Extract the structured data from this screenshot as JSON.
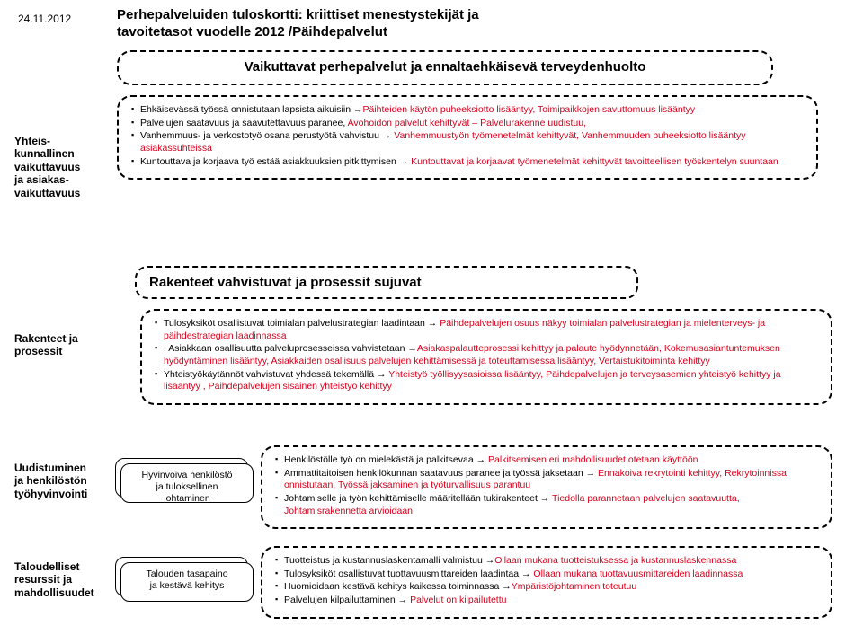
{
  "date": "24.11.2012",
  "title_line1": "Perhepalveluiden tuloskortti: kriittiset menestystekijät  ja",
  "title_line2": "tavoitetasot vuodelle  2012  /Päihdepalvelut",
  "subtitle": "Vaikuttavat perhepalvelut ja ennaltaehkäisevä terveydenhuolto",
  "section_header": "Rakenteet vahvistuvat ja prosessit sujuvat",
  "labels": {
    "l1a": "Yhteis-",
    "l1b": "kunnallinen",
    "l1c": "vaikuttavuus",
    "l1d": "ja asiakas-",
    "l1e": "vaikuttavuus",
    "l2a": "Rakenteet ja",
    "l2b": "prosessit",
    "l3a": "Uudistuminen",
    "l3b": "ja henkilöstön",
    "l3c": "työhyvinvointi",
    "l4a": "Taloudelliset",
    "l4b": "resurssit ja",
    "l4c": "mahdollisuudet"
  },
  "pill1_line1": "Hyvinvoiva henkilöstö",
  "pill1_line2": "ja tuloksellinen",
  "pill1_line3": "johtaminen",
  "pill2_line1": "Talouden tasapaino",
  "pill2_line2": "ja kestävä kehitys",
  "panelA": [
    {
      "blk": "Ehkäisevässä työssä onnistutaan lapsista aikuisiin →",
      "red": "Päihteiden käytön puheeksiotto lisääntyy, Toimipaikkojen savuttomuus lisääntyy"
    },
    {
      "blk": "Palvelujen saatavuus ja saavutettavuus paranee, ",
      "red": "Avohoidon palvelut kehittyvät – Palvelurakenne uudistuu,"
    },
    {
      "blk": "Vanhemmuus- ja verkostotyö osana perustyötä vahvistuu → ",
      "red": "Vanhemmuustyön työmenetelmät kehittyvät, Vanhemmuuden puheeksiotto lisääntyy asiakassuhteissa"
    },
    {
      "blk": "Kuntouttava ja korjaava työ estää asiakkuuksien pitkittymisen → ",
      "red": "Kuntouttavat ja korjaavat työmenetelmät kehittyvät tavoitteellisen työskentelyn suuntaan"
    }
  ],
  "panelB": [
    {
      "blk": "Tulosyksiköt osallistuvat toimialan palvelustrategian laadintaan → ",
      "red": "Päihdepalvelujen osuus näkyy toimialan palvelustrategian ja mielenterveys- ja päihdestrategian laadinnassa"
    },
    {
      "blk": ", Asiakkaan osallisuutta palveluprosesseissa vahvistetaan →",
      "red": "Asiakaspalautteprosessi kehittyy ja palaute hyödynnetään, Kokemusasiantuntemuksen hyödyntäminen lisääntyy, Asiakkaiden osallisuus palvelujen kehittämisessä ja toteuttamisessa lisääntyy,  Vertaistukitoiminta kehittyy"
    },
    {
      "blk": "Yhteistyökäytännöt vahvistuvat yhdessä tekemällä → ",
      "red": "Yhteistyö työllisyysasioissa lisääntyy, Päihdepalvelujen ja terveysasemien yhteistyö kehittyy ja lisääntyy , Päihdepalvelujen sisäinen yhteistyö kehittyy"
    }
  ],
  "panelC": [
    {
      "blk": "Henkilöstölle työ on mielekästä ja palkitsevaa → ",
      "red": "Palkitsemisen eri mahdollisuudet otetaan käyttöön"
    },
    {
      "blk": "Ammattitaitoisen henkilökunnan saatavuus paranee ja työssä jaksetaan → ",
      "red": "Ennakoiva rekrytointi kehittyy, Rekrytoinnissa onnistutaan, Työssä jaksaminen ja työturvallisuus parantuu"
    },
    {
      "blk": "Johtamiselle ja työn kehittämiselle määritellään tukirakenteet → ",
      "red": "Tiedolla parannetaan palvelujen saatavuutta, Johtamisrakennetta arvioidaan"
    }
  ],
  "panelD": [
    {
      "blk": "Tuotteistus ja kustannuslaskentamalli valmistuu →",
      "red": "Ollaan mukana tuotteistuksessa ja kustannuslaskennassa"
    },
    {
      "blk": "Tulosyksiköt osallistuvat tuottavuusmittareiden laadintaa → ",
      "red": "Ollaan mukana tuottavuusmittareiden laadinnassa"
    },
    {
      "blk": "Huomioidaan kestävä kehitys kaikessa toiminnassa →",
      "red": "Ympäristöjohtaminen toteutuu"
    },
    {
      "blk": "Palvelujen kilpailuttaminen → ",
      "red": "Palvelut on kilpailutettu"
    }
  ]
}
